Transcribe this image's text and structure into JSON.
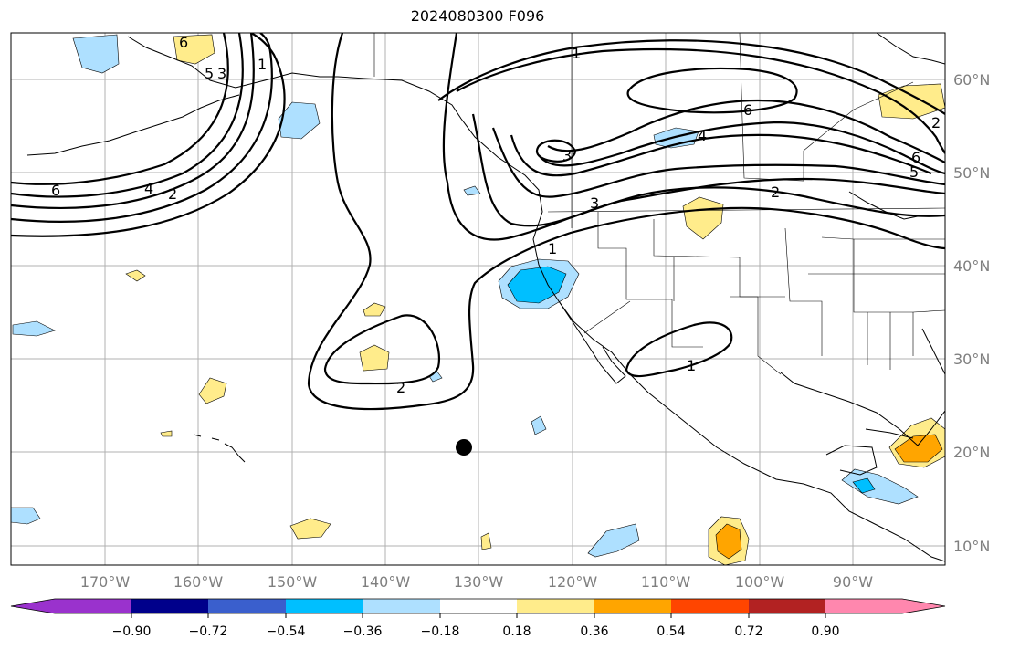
{
  "title": "2024080300 F096",
  "map": {
    "lon_labels": [
      "170°W",
      "160°W",
      "150°W",
      "140°W",
      "130°W",
      "120°W",
      "110°W",
      "100°W",
      "90°W"
    ],
    "lat_labels": [
      "60°N",
      "50°N",
      "40°N",
      "30°N",
      "20°N",
      "10°N"
    ],
    "contour_labels": [
      "6",
      "5",
      "3",
      "2",
      "1",
      "6",
      "4",
      "4",
      "6",
      "3",
      "2",
      "1",
      "2",
      "1",
      "2",
      "1",
      "6",
      "5",
      "3"
    ],
    "marker": "storm-center-dot"
  },
  "colorbar": {
    "ticks": [
      "−0.90",
      "−0.72",
      "−0.54",
      "−0.36",
      "−0.18",
      "0.18",
      "0.36",
      "0.54",
      "0.72",
      "0.90"
    ],
    "colors": [
      "#9a32cd",
      "#00008b",
      "#3a5fcd",
      "#00bfff",
      "#aee0ff",
      "#ffffff",
      "#ffec8b",
      "#ffa500",
      "#ff4500",
      "#b22222",
      "#ff87ae"
    ]
  }
}
